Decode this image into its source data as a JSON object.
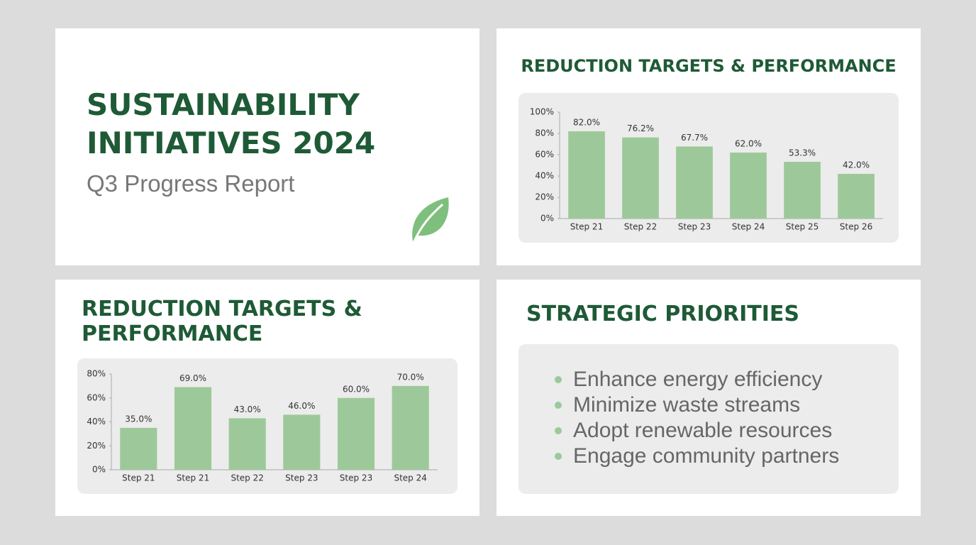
{
  "title_slide": {
    "title": "SUSTAINABILITY INITIATIVES 2024",
    "subtitle": "Q3 Progress Report"
  },
  "chart_data": [
    {
      "type": "bar",
      "title": "REDUCTION TARGETS & PERFORMANCE",
      "categories": [
        "Step 21",
        "Step 22",
        "Step 23",
        "Step 24",
        "Step 25",
        "Step 26"
      ],
      "values": [
        82.0,
        76.2,
        67.7,
        62.0,
        53.3,
        42.0
      ],
      "value_labels": [
        "82.0%",
        "76.2%",
        "67.7%",
        "62.0%",
        "53.3%",
        "42.0%"
      ],
      "color": "#9dc99a",
      "ylim": [
        0,
        100
      ],
      "yticks": [
        {
          "value": 0,
          "label": "0%"
        },
        {
          "value": 20,
          "label": "20%"
        },
        {
          "value": 40,
          "label": "40%"
        },
        {
          "value": 60,
          "label": "60%"
        },
        {
          "value": 80,
          "label": "80%"
        },
        {
          "value": 100,
          "label": "100%"
        }
      ]
    },
    {
      "type": "bar",
      "title": "REDUCTION TARGETS & PERFORMANCE",
      "categories": [
        "Step 21",
        "Step 21",
        "Step 22",
        "Step 23",
        "Step 23",
        "Step 24"
      ],
      "values": [
        35.0,
        69.0,
        43.0,
        46.0,
        60.0,
        70.0
      ],
      "value_labels": [
        "35.0%",
        "69.0%",
        "43.0%",
        "46.0%",
        "60.0%",
        "70.0%"
      ],
      "color": "#9dc99a",
      "ylim": [
        0,
        80
      ],
      "yticks": [
        {
          "value": 0,
          "label": "0%"
        },
        {
          "value": 20,
          "label": "20%"
        },
        {
          "value": 40,
          "label": "40%"
        },
        {
          "value": 60,
          "label": "60%"
        },
        {
          "value": 80,
          "label": "80%"
        }
      ]
    }
  ],
  "priorities": {
    "title": "STRATEGIC PRIORITIES",
    "items": [
      "Enhance energy efficiency",
      "Minimize waste streams",
      "Adopt renewable resources",
      "Engage community partners"
    ]
  }
}
